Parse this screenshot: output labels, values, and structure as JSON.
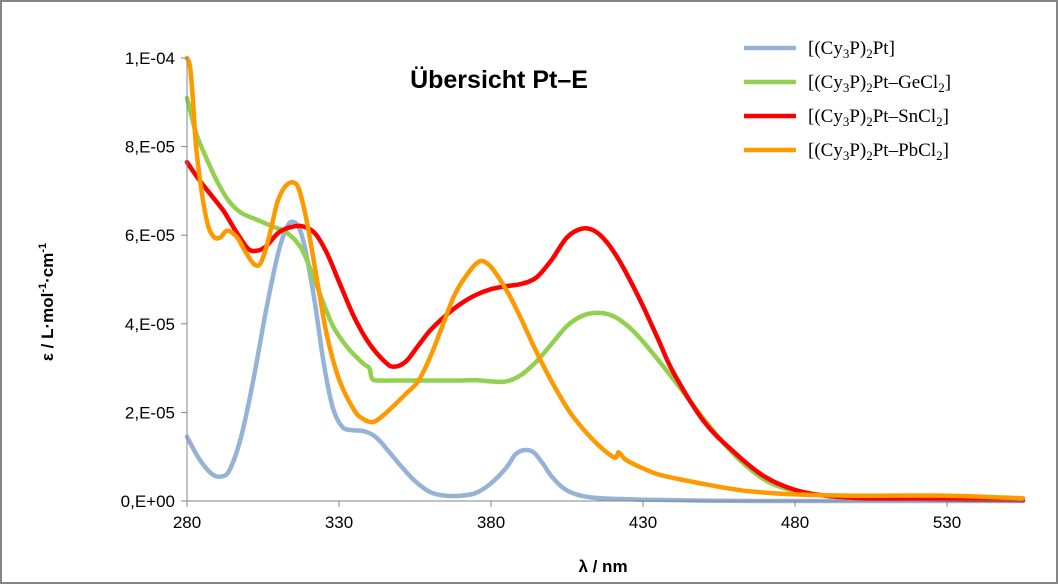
{
  "chart_data": {
    "type": "line",
    "title": "Übersicht Pt–E",
    "xlabel": "λ / nm",
    "ylabel": "ε / L·mol-1·cm-1",
    "xlim": [
      280,
      555
    ],
    "ylim": [
      0,
      0.0001
    ],
    "x_ticks": [
      280,
      330,
      380,
      430,
      480,
      530
    ],
    "x_tick_labels": [
      "280",
      "330",
      "380",
      "430",
      "480",
      "530"
    ],
    "y_ticks": [
      0,
      2e-05,
      4e-05,
      6e-05,
      8e-05,
      0.0001
    ],
    "y_tick_labels": [
      "0,E+00",
      "2,E-05",
      "4,E-05",
      "6,E-05",
      "8,E-05",
      "1,E-04"
    ],
    "grid": false,
    "legend_position": "top-right",
    "series": [
      {
        "name": "[(Cy3P)2Pt]",
        "color": "#95b3d7",
        "x": [
          280,
          284,
          288,
          291,
          294,
          298,
          302,
          306,
          310,
          313,
          315,
          317,
          319,
          322,
          325,
          328,
          331,
          334,
          338,
          342,
          346,
          350,
          355,
          360,
          365,
          370,
          375,
          380,
          385,
          388,
          391,
          394,
          397,
          400,
          404,
          408,
          413,
          420,
          430,
          440,
          450,
          470,
          500,
          555
        ],
        "y": [
          1.45e-05,
          9.5e-06,
          6.2e-06,
          5.5e-06,
          7e-06,
          1.5e-05,
          2.8e-05,
          4.3e-05,
          5.6e-05,
          6.2e-05,
          6.3e-05,
          6.15e-05,
          5.65e-05,
          4.5e-05,
          3.1e-05,
          2.1e-05,
          1.68e-05,
          1.6e-05,
          1.58e-05,
          1.45e-05,
          1.15e-05,
          8.2e-06,
          4.5e-06,
          2e-06,
          1.2e-06,
          1.2e-06,
          1.8e-06,
          4e-06,
          7.5e-06,
          1.05e-05,
          1.15e-05,
          1.1e-05,
          8.5e-06,
          5.5e-06,
          2.8e-06,
          1.5e-06,
          8e-07,
          5e-07,
          3e-07,
          2e-07,
          1e-07,
          0,
          0,
          0
        ]
      },
      {
        "name": "[(Cy3P)2Pt–GeCl2]",
        "color": "#92d050",
        "x": [
          280,
          283,
          286,
          290,
          294,
          298,
          303,
          308,
          313,
          318,
          323,
          328,
          333,
          338,
          340,
          341,
          344,
          350,
          360,
          370,
          375,
          380,
          385,
          390,
          395,
          400,
          405,
          410,
          415,
          420,
          425,
          430,
          440,
          450,
          460,
          470,
          480,
          490,
          500,
          520,
          555
        ],
        "y": [
          9.1e-05,
          8.3e-05,
          7.8e-05,
          7.2e-05,
          6.75e-05,
          6.5e-05,
          6.35e-05,
          6.2e-05,
          6.05e-05,
          5.65e-05,
          4.8e-05,
          3.95e-05,
          3.45e-05,
          3.1e-05,
          3e-05,
          2.75e-05,
          2.72e-05,
          2.72e-05,
          2.72e-05,
          2.72e-05,
          2.73e-05,
          2.7e-05,
          2.7e-05,
          2.85e-05,
          3.15e-05,
          3.55e-05,
          3.95e-05,
          4.18e-05,
          4.25e-05,
          4.18e-05,
          3.95e-05,
          3.6e-05,
          2.75e-05,
          1.85e-05,
          1.05e-05,
          4.8e-06,
          2.2e-06,
          1.2e-06,
          8e-07,
          5e-07,
          3e-07
        ]
      },
      {
        "name": "[(Cy3P)2Pt–SnCl2]",
        "color": "#ff0000",
        "x": [
          280,
          284,
          288,
          292,
          296,
          300,
          303,
          306,
          310,
          314,
          318,
          322,
          326,
          330,
          335,
          340,
          345,
          348,
          352,
          356,
          360,
          365,
          370,
          375,
          380,
          385,
          390,
          395,
          400,
          405,
          410,
          414,
          418,
          422,
          426,
          430,
          435,
          440,
          450,
          460,
          470,
          480,
          490,
          500,
          520,
          555
        ],
        "y": [
          7.65e-05,
          7.25e-05,
          6.9e-05,
          6.55e-05,
          6.1e-05,
          5.7e-05,
          5.65e-05,
          5.75e-05,
          6.05e-05,
          6.18e-05,
          6.2e-05,
          6.05e-05,
          5.6e-05,
          4.95e-05,
          4.15e-05,
          3.55e-05,
          3.15e-05,
          3.03e-05,
          3.15e-05,
          3.5e-05,
          3.85e-05,
          4.18e-05,
          4.45e-05,
          4.65e-05,
          4.78e-05,
          4.85e-05,
          4.9e-05,
          5.05e-05,
          5.45e-05,
          5.95e-05,
          6.15e-05,
          6.1e-05,
          5.85e-05,
          5.45e-05,
          4.95e-05,
          4.4e-05,
          3.65e-05,
          2.9e-05,
          1.8e-05,
          1.1e-05,
          5.5e-06,
          2.5e-06,
          1.2e-06,
          7e-07,
          4e-07,
          2e-07
        ]
      },
      {
        "name": "[(Cy3P)2Pt–PbCl2]",
        "color": "#ff9900",
        "x": [
          280,
          281,
          282,
          283,
          285,
          287,
          289,
          291,
          293,
          295,
          297,
          299,
          302,
          304,
          306,
          308,
          310,
          313,
          316,
          318,
          320,
          323,
          326,
          330,
          335,
          338,
          341,
          344,
          348,
          352,
          356,
          360,
          364,
          368,
          372,
          376,
          379,
          382,
          386,
          390,
          394,
          398,
          402,
          406,
          410,
          414,
          418,
          421,
          422,
          424,
          428,
          435,
          445,
          455,
          465,
          480,
          500,
          530,
          555
        ],
        "y": [
          0.0001,
          9.8e-05,
          9e-05,
          8e-05,
          6.9e-05,
          6.2e-05,
          5.95e-05,
          5.95e-05,
          6.1e-05,
          6.05e-05,
          5.9e-05,
          5.65e-05,
          5.35e-05,
          5.35e-05,
          5.7e-05,
          6.25e-05,
          6.8e-05,
          7.15e-05,
          7.15e-05,
          6.75e-05,
          6.1e-05,
          4.9e-05,
          3.75e-05,
          2.75e-05,
          2.05e-05,
          1.85e-05,
          1.78e-05,
          1.9e-05,
          2.15e-05,
          2.42e-05,
          2.7e-05,
          3.25e-05,
          3.95e-05,
          4.65e-05,
          5.1e-05,
          5.4e-05,
          5.35e-05,
          5.1e-05,
          4.65e-05,
          4.1e-05,
          3.5e-05,
          2.95e-05,
          2.45e-05,
          2e-05,
          1.65e-05,
          1.35e-05,
          1.1e-05,
          9.8e-06,
          1.1e-05,
          9.5e-06,
          8e-06,
          6e-06,
          4.5e-06,
          3.2e-06,
          2.2e-06,
          1.5e-06,
          1.2e-06,
          1.2e-06,
          6e-07
        ]
      }
    ]
  },
  "legend": [
    {
      "prefix": "[(Cy",
      "sub1": "3",
      "mid": "P)",
      "sub2": "2",
      "tail": "Pt]",
      "sub3": "",
      "end": ""
    },
    {
      "prefix": "[(Cy",
      "sub1": "3",
      "mid": "P)",
      "sub2": "2",
      "tail": "Pt–GeCl",
      "sub3": "2",
      "end": "]"
    },
    {
      "prefix": "[(Cy",
      "sub1": "3",
      "mid": "P)",
      "sub2": "2",
      "tail": "Pt–SnCl",
      "sub3": "2",
      "end": "]"
    },
    {
      "prefix": "[(Cy",
      "sub1": "3",
      "mid": "P)",
      "sub2": "2",
      "tail": "Pt–PbCl",
      "sub3": "2",
      "end": "]"
    }
  ],
  "ylabel_parts": {
    "a": "ε / L·mol",
    "s1": "-1",
    "b": "·cm",
    "s2": "-1"
  }
}
